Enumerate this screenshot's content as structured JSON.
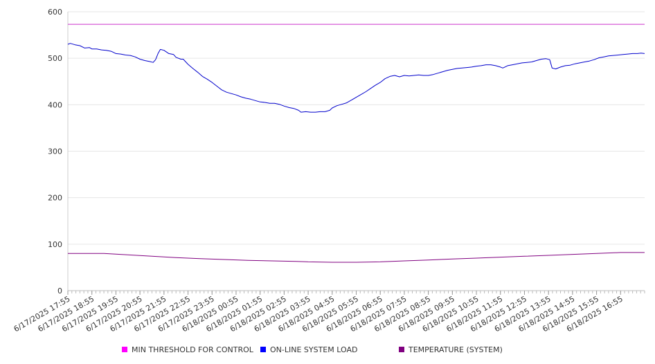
{
  "chart_data": {
    "type": "line",
    "title": "",
    "xlabel": "",
    "ylabel": "",
    "ylim": [
      0,
      600
    ],
    "yticks": [
      0,
      100,
      200,
      300,
      400,
      500,
      600
    ],
    "grid": true,
    "legend_position": "bottom",
    "x_tick_labels": [
      "6/17/2025 17:55",
      "6/17/2025 18:55",
      "6/17/2025 19:55",
      "6/17/2025 20:55",
      "6/17/2025 21:55",
      "6/17/2025 22:55",
      "6/17/2025 23:55",
      "6/18/2025 00:55",
      "6/18/2025 01:55",
      "6/18/2025 02:55",
      "6/18/2025 03:55",
      "6/18/2025 04:55",
      "6/18/2025 05:55",
      "6/18/2025 06:55",
      "6/18/2025 07:55",
      "6/18/2025 08:55",
      "6/18/2025 09:55",
      "6/18/2025 10:55",
      "6/18/2025 11:55",
      "6/18/2025 12:55",
      "6/18/2025 13:55",
      "6/18/2025 14:55",
      "6/18/2025 15:55",
      "6/18/2025 16:55"
    ],
    "x_range_hours": [
      0,
      24
    ],
    "series": [
      {
        "name": "MIN THRESHOLD FOR CONTROL",
        "color": "#cc33cc",
        "legend_color": "#ff00ff",
        "points": [
          [
            0,
            573
          ],
          [
            24,
            573
          ]
        ]
      },
      {
        "name": "ON-LINE SYSTEM LOAD",
        "color": "#0000cc",
        "legend_color": "#0000ff",
        "points": [
          [
            0,
            530
          ],
          [
            0.1,
            532
          ],
          [
            0.3,
            529
          ],
          [
            0.5,
            527
          ],
          [
            0.7,
            522
          ],
          [
            0.9,
            523
          ],
          [
            1.0,
            520
          ],
          [
            1.2,
            520
          ],
          [
            1.4,
            518
          ],
          [
            1.6,
            517
          ],
          [
            1.8,
            515
          ],
          [
            2.0,
            510
          ],
          [
            2.2,
            509
          ],
          [
            2.4,
            507
          ],
          [
            2.6,
            506
          ],
          [
            2.8,
            503
          ],
          [
            3.0,
            498
          ],
          [
            3.2,
            495
          ],
          [
            3.4,
            493
          ],
          [
            3.55,
            491
          ],
          [
            3.65,
            497
          ],
          [
            3.75,
            510
          ],
          [
            3.85,
            519
          ],
          [
            4.0,
            517
          ],
          [
            4.2,
            510
          ],
          [
            4.4,
            508
          ],
          [
            4.5,
            502
          ],
          [
            4.7,
            498
          ],
          [
            4.8,
            498
          ],
          [
            5.0,
            487
          ],
          [
            5.2,
            478
          ],
          [
            5.4,
            470
          ],
          [
            5.6,
            461
          ],
          [
            5.8,
            455
          ],
          [
            6.0,
            448
          ],
          [
            6.2,
            440
          ],
          [
            6.4,
            432
          ],
          [
            6.6,
            427
          ],
          [
            6.8,
            424
          ],
          [
            7.0,
            421
          ],
          [
            7.2,
            417
          ],
          [
            7.4,
            414
          ],
          [
            7.6,
            412
          ],
          [
            7.8,
            409
          ],
          [
            8.0,
            406
          ],
          [
            8.2,
            405
          ],
          [
            8.4,
            403
          ],
          [
            8.6,
            403
          ],
          [
            8.8,
            401
          ],
          [
            9.0,
            397
          ],
          [
            9.2,
            394
          ],
          [
            9.4,
            392
          ],
          [
            9.6,
            388
          ],
          [
            9.7,
            384
          ],
          [
            9.9,
            385
          ],
          [
            10.1,
            384
          ],
          [
            10.3,
            384
          ],
          [
            10.5,
            385
          ],
          [
            10.7,
            385
          ],
          [
            10.9,
            388
          ],
          [
            11.0,
            393
          ],
          [
            11.2,
            398
          ],
          [
            11.4,
            401
          ],
          [
            11.6,
            404
          ],
          [
            11.8,
            410
          ],
          [
            12.0,
            416
          ],
          [
            12.2,
            422
          ],
          [
            12.4,
            428
          ],
          [
            12.6,
            435
          ],
          [
            12.8,
            442
          ],
          [
            13.0,
            448
          ],
          [
            13.2,
            456
          ],
          [
            13.4,
            461
          ],
          [
            13.6,
            463
          ],
          [
            13.8,
            460
          ],
          [
            14.0,
            463
          ],
          [
            14.2,
            462
          ],
          [
            14.4,
            463
          ],
          [
            14.6,
            464
          ],
          [
            14.8,
            463
          ],
          [
            15.0,
            463
          ],
          [
            15.2,
            465
          ],
          [
            15.4,
            468
          ],
          [
            15.6,
            471
          ],
          [
            15.8,
            474
          ],
          [
            16.0,
            476
          ],
          [
            16.2,
            478
          ],
          [
            16.4,
            479
          ],
          [
            16.6,
            480
          ],
          [
            16.8,
            481
          ],
          [
            17.0,
            483
          ],
          [
            17.2,
            484
          ],
          [
            17.4,
            486
          ],
          [
            17.6,
            486
          ],
          [
            17.8,
            484
          ],
          [
            18.0,
            481
          ],
          [
            18.1,
            479
          ],
          [
            18.3,
            484
          ],
          [
            18.5,
            486
          ],
          [
            18.7,
            488
          ],
          [
            18.9,
            490
          ],
          [
            19.1,
            491
          ],
          [
            19.3,
            492
          ],
          [
            19.5,
            495
          ],
          [
            19.7,
            498
          ],
          [
            19.9,
            499
          ],
          [
            20.05,
            497
          ],
          [
            20.15,
            479
          ],
          [
            20.3,
            477
          ],
          [
            20.5,
            481
          ],
          [
            20.7,
            484
          ],
          [
            20.9,
            485
          ],
          [
            21.1,
            488
          ],
          [
            21.3,
            490
          ],
          [
            21.5,
            492
          ],
          [
            21.7,
            494
          ],
          [
            21.9,
            497
          ],
          [
            22.1,
            501
          ],
          [
            22.3,
            503
          ],
          [
            22.5,
            505
          ],
          [
            22.7,
            506
          ],
          [
            22.9,
            507
          ],
          [
            23.1,
            508
          ],
          [
            23.3,
            509
          ],
          [
            23.5,
            510
          ],
          [
            23.7,
            510
          ],
          [
            23.85,
            511
          ],
          [
            24,
            510
          ]
        ]
      },
      {
        "name": "TEMPERATURE (SYSTEM)",
        "color": "#800080",
        "legend_color": "#800080",
        "points": [
          [
            0,
            80
          ],
          [
            1.5,
            80
          ],
          [
            2.5,
            77
          ],
          [
            3.5,
            74
          ],
          [
            4.5,
            71
          ],
          [
            5.5,
            69
          ],
          [
            6.5,
            67
          ],
          [
            7.5,
            65
          ],
          [
            8.5,
            64
          ],
          [
            9.5,
            63
          ],
          [
            10.0,
            62
          ],
          [
            11.0,
            61
          ],
          [
            12.0,
            61
          ],
          [
            13.0,
            62
          ],
          [
            14.0,
            64
          ],
          [
            15.0,
            66
          ],
          [
            16.0,
            68
          ],
          [
            17.0,
            70
          ],
          [
            18.0,
            72
          ],
          [
            19.0,
            74
          ],
          [
            20.0,
            76
          ],
          [
            21.0,
            78
          ],
          [
            22.0,
            80
          ],
          [
            23.0,
            82
          ],
          [
            24,
            82
          ]
        ]
      }
    ]
  }
}
